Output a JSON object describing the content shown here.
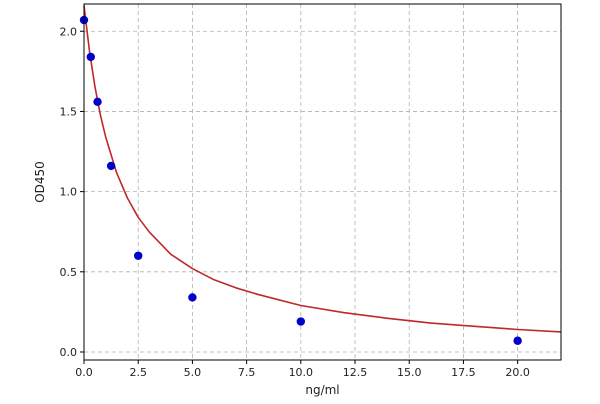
{
  "chart_data": {
    "type": "scatter",
    "xlabel": "ng/ml",
    "ylabel": "OD450",
    "xlim": [
      0,
      22
    ],
    "ylim": [
      -0.05,
      2.17
    ],
    "x_ticks": [
      0.0,
      2.5,
      5.0,
      7.5,
      10.0,
      12.5,
      15.0,
      17.5,
      20.0
    ],
    "x_tick_labels": [
      "0.0",
      "2.5",
      "5.0",
      "7.5",
      "10.0",
      "12.5",
      "15.0",
      "17.5",
      "20.0"
    ],
    "y_ticks": [
      0.0,
      0.5,
      1.0,
      1.5,
      2.0
    ],
    "y_tick_labels": [
      "0.0",
      "0.5",
      "1.0",
      "1.5",
      "2.0"
    ],
    "grid": true,
    "grid_style": "dashed",
    "series": [
      {
        "type": "scatter",
        "color": "#0000cc",
        "x": [
          0,
          0.313,
          0.625,
          1.25,
          2.5,
          5,
          10,
          20
        ],
        "y": [
          2.07,
          1.84,
          1.56,
          1.16,
          0.6,
          0.34,
          0.19,
          0.07
        ]
      },
      {
        "type": "line",
        "color": "#c0282a",
        "x": [
          0,
          0.25,
          0.5,
          0.75,
          1,
          1.5,
          2,
          2.5,
          3,
          4,
          5,
          6,
          7,
          8,
          10,
          12,
          14,
          16,
          18,
          20,
          22
        ],
        "y": [
          2.16,
          1.88,
          1.66,
          1.48,
          1.34,
          1.12,
          0.96,
          0.84,
          0.75,
          0.61,
          0.52,
          0.45,
          0.4,
          0.36,
          0.29,
          0.245,
          0.21,
          0.18,
          0.16,
          0.14,
          0.125
        ]
      }
    ]
  }
}
